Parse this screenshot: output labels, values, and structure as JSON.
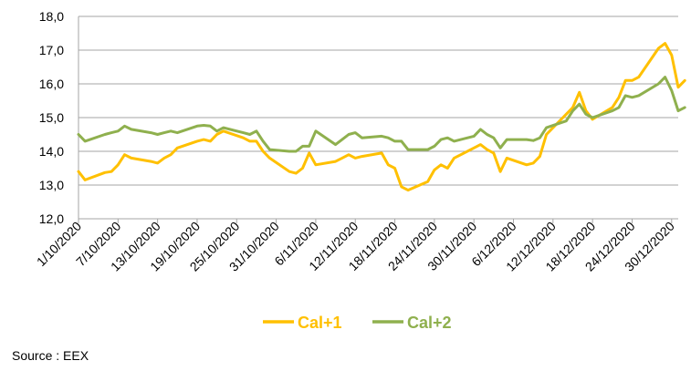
{
  "chart_data": {
    "type": "line",
    "x_start": "2020-10-01",
    "x_end": "2020-12-31",
    "ylim": [
      12.0,
      18.0
    ],
    "yticks": [
      "12,0",
      "13,0",
      "14,0",
      "15,0",
      "16,0",
      "17,0",
      "18,0"
    ],
    "xticks": [
      "1/10/2020",
      "7/10/2020",
      "13/10/2020",
      "19/10/2020",
      "25/10/2020",
      "31/10/2020",
      "6/11/2020",
      "12/11/2020",
      "18/11/2020",
      "24/11/2020",
      "30/11/2020",
      "6/12/2020",
      "12/12/2020",
      "18/12/2020",
      "24/12/2020",
      "30/12/2020"
    ],
    "grid": true,
    "legend_position": "bottom",
    "series": [
      {
        "name": "Cal+1",
        "color": "#FFC000",
        "points": [
          [
            "2020-10-01",
            13.4
          ],
          [
            "2020-10-02",
            13.15
          ],
          [
            "2020-10-05",
            13.37
          ],
          [
            "2020-10-06",
            13.4
          ],
          [
            "2020-10-07",
            13.6
          ],
          [
            "2020-10-08",
            13.9
          ],
          [
            "2020-10-09",
            13.8
          ],
          [
            "2020-10-12",
            13.7
          ],
          [
            "2020-10-13",
            13.65
          ],
          [
            "2020-10-14",
            13.8
          ],
          [
            "2020-10-15",
            13.9
          ],
          [
            "2020-10-16",
            14.1
          ],
          [
            "2020-10-19",
            14.3
          ],
          [
            "2020-10-20",
            14.35
          ],
          [
            "2020-10-21",
            14.3
          ],
          [
            "2020-10-22",
            14.5
          ],
          [
            "2020-10-23",
            14.6
          ],
          [
            "2020-10-26",
            14.4
          ],
          [
            "2020-10-27",
            14.3
          ],
          [
            "2020-10-28",
            14.3
          ],
          [
            "2020-10-29",
            14.0
          ],
          [
            "2020-10-30",
            13.8
          ],
          [
            "2020-11-02",
            13.4
          ],
          [
            "2020-11-03",
            13.35
          ],
          [
            "2020-11-04",
            13.5
          ],
          [
            "2020-11-05",
            13.95
          ],
          [
            "2020-11-06",
            13.6
          ],
          [
            "2020-11-09",
            13.7
          ],
          [
            "2020-11-10",
            13.8
          ],
          [
            "2020-11-11",
            13.9
          ],
          [
            "2020-11-12",
            13.8
          ],
          [
            "2020-11-13",
            13.85
          ],
          [
            "2020-11-16",
            13.95
          ],
          [
            "2020-11-17",
            13.6
          ],
          [
            "2020-11-18",
            13.5
          ],
          [
            "2020-11-19",
            12.95
          ],
          [
            "2020-11-20",
            12.85
          ],
          [
            "2020-11-23",
            13.1
          ],
          [
            "2020-11-24",
            13.45
          ],
          [
            "2020-11-25",
            13.6
          ],
          [
            "2020-11-26",
            13.5
          ],
          [
            "2020-11-27",
            13.8
          ],
          [
            "2020-11-30",
            14.1
          ],
          [
            "2020-12-01",
            14.2
          ],
          [
            "2020-12-02",
            14.05
          ],
          [
            "2020-12-03",
            13.95
          ],
          [
            "2020-12-04",
            13.4
          ],
          [
            "2020-12-05",
            13.8
          ],
          [
            "2020-12-08",
            13.6
          ],
          [
            "2020-12-09",
            13.65
          ],
          [
            "2020-12-10",
            13.85
          ],
          [
            "2020-12-11",
            14.5
          ],
          [
            "2020-12-14",
            15.1
          ],
          [
            "2020-12-15",
            15.3
          ],
          [
            "2020-12-16",
            15.75
          ],
          [
            "2020-12-17",
            15.2
          ],
          [
            "2020-12-18",
            14.95
          ],
          [
            "2020-12-21",
            15.3
          ],
          [
            "2020-12-22",
            15.6
          ],
          [
            "2020-12-23",
            16.1
          ],
          [
            "2020-12-24",
            16.1
          ],
          [
            "2020-12-25",
            16.2
          ],
          [
            "2020-12-28",
            17.05
          ],
          [
            "2020-12-29",
            17.2
          ],
          [
            "2020-12-30",
            16.85
          ],
          [
            "2020-12-31",
            15.9
          ],
          [
            "2021-01-01",
            16.1
          ]
        ]
      },
      {
        "name": "Cal+2",
        "color": "#8FB04E",
        "points": [
          [
            "2020-10-01",
            14.5
          ],
          [
            "2020-10-02",
            14.3
          ],
          [
            "2020-10-05",
            14.5
          ],
          [
            "2020-10-06",
            14.55
          ],
          [
            "2020-10-07",
            14.6
          ],
          [
            "2020-10-08",
            14.75
          ],
          [
            "2020-10-09",
            14.65
          ],
          [
            "2020-10-12",
            14.55
          ],
          [
            "2020-10-13",
            14.5
          ],
          [
            "2020-10-14",
            14.55
          ],
          [
            "2020-10-15",
            14.6
          ],
          [
            "2020-10-16",
            14.55
          ],
          [
            "2020-10-19",
            14.75
          ],
          [
            "2020-10-20",
            14.77
          ],
          [
            "2020-10-21",
            14.75
          ],
          [
            "2020-10-22",
            14.6
          ],
          [
            "2020-10-23",
            14.7
          ],
          [
            "2020-10-26",
            14.55
          ],
          [
            "2020-10-27",
            14.5
          ],
          [
            "2020-10-28",
            14.6
          ],
          [
            "2020-10-29",
            14.3
          ],
          [
            "2020-10-30",
            14.05
          ],
          [
            "2020-11-02",
            14.0
          ],
          [
            "2020-11-03",
            14.0
          ],
          [
            "2020-11-04",
            14.15
          ],
          [
            "2020-11-05",
            14.15
          ],
          [
            "2020-11-06",
            14.6
          ],
          [
            "2020-11-09",
            14.2
          ],
          [
            "2020-11-10",
            14.35
          ],
          [
            "2020-11-11",
            14.5
          ],
          [
            "2020-11-12",
            14.55
          ],
          [
            "2020-11-13",
            14.4
          ],
          [
            "2020-11-16",
            14.45
          ],
          [
            "2020-11-17",
            14.4
          ],
          [
            "2020-11-18",
            14.3
          ],
          [
            "2020-11-19",
            14.3
          ],
          [
            "2020-11-20",
            14.05
          ],
          [
            "2020-11-23",
            14.05
          ],
          [
            "2020-11-24",
            14.15
          ],
          [
            "2020-11-25",
            14.35
          ],
          [
            "2020-11-26",
            14.4
          ],
          [
            "2020-11-27",
            14.3
          ],
          [
            "2020-11-30",
            14.45
          ],
          [
            "2020-12-01",
            14.65
          ],
          [
            "2020-12-02",
            14.5
          ],
          [
            "2020-12-03",
            14.4
          ],
          [
            "2020-12-04",
            14.1
          ],
          [
            "2020-12-05",
            14.35
          ],
          [
            "2020-12-08",
            14.35
          ],
          [
            "2020-12-09",
            14.32
          ],
          [
            "2020-12-10",
            14.4
          ],
          [
            "2020-12-11",
            14.7
          ],
          [
            "2020-12-14",
            14.9
          ],
          [
            "2020-12-15",
            15.2
          ],
          [
            "2020-12-16",
            15.4
          ],
          [
            "2020-12-17",
            15.1
          ],
          [
            "2020-12-18",
            15.0
          ],
          [
            "2020-12-21",
            15.2
          ],
          [
            "2020-12-22",
            15.3
          ],
          [
            "2020-12-23",
            15.65
          ],
          [
            "2020-12-24",
            15.6
          ],
          [
            "2020-12-25",
            15.65
          ],
          [
            "2020-12-28",
            16.0
          ],
          [
            "2020-12-29",
            16.2
          ],
          [
            "2020-12-30",
            15.8
          ],
          [
            "2020-12-31",
            15.2
          ],
          [
            "2021-01-01",
            15.3
          ]
        ]
      }
    ]
  },
  "source_text": "Source : EEX"
}
